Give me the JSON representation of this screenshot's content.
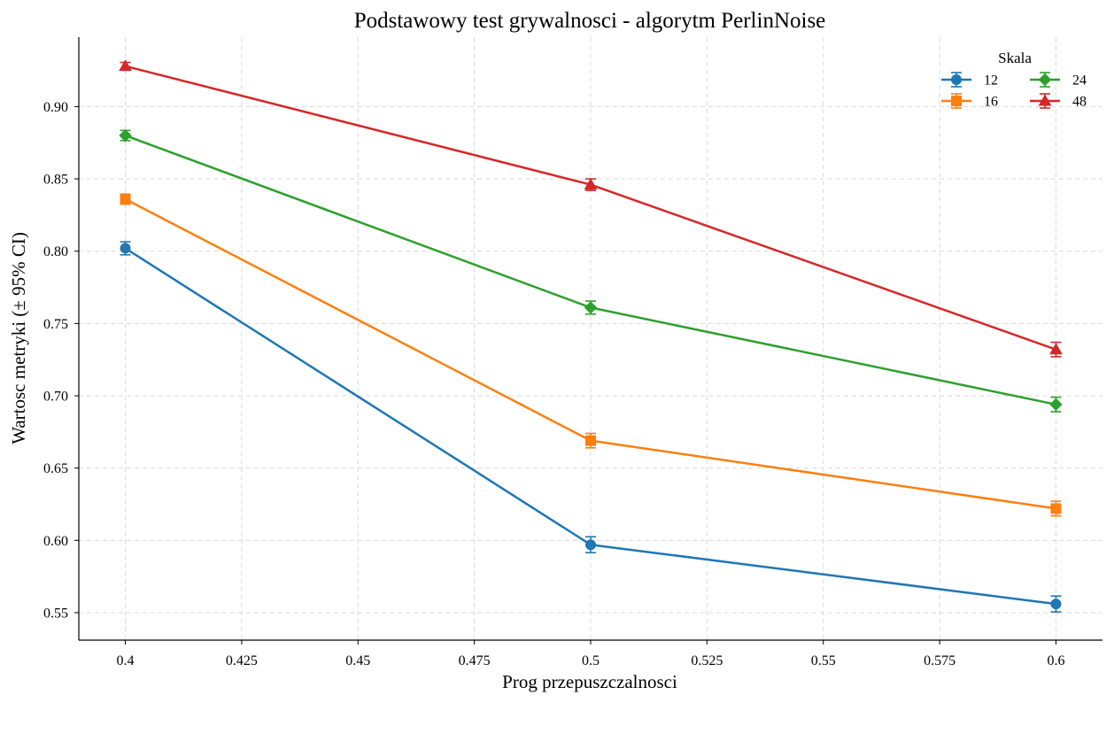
{
  "chart_data": {
    "type": "line",
    "title": "Podstawowy test grywalnosci - algorytm PerlinNoise",
    "xlabel": "Prog przepuszczalnosci",
    "ylabel": "Wartosc metryki (± 95% CI)",
    "x": [
      0.4,
      0.5,
      0.6
    ],
    "xlim": [
      0.39,
      0.61
    ],
    "ylim": [
      0.531,
      0.948
    ],
    "xticks": [
      "0.4",
      "0.425",
      "0.45",
      "0.475",
      "0.5",
      "0.525",
      "0.55",
      "0.575",
      "0.6"
    ],
    "yticks": [
      "0.55",
      "0.60",
      "0.65",
      "0.70",
      "0.75",
      "0.80",
      "0.85",
      "0.90"
    ],
    "grid": true,
    "legend": {
      "title": "Skala",
      "position": "top-right",
      "columns": 2
    },
    "series": [
      {
        "name": "12",
        "color": "#1f77b4",
        "marker": "circle",
        "values": [
          0.802,
          0.597,
          0.556
        ],
        "ci": [
          0.0045,
          0.0055,
          0.0055
        ]
      },
      {
        "name": "16",
        "color": "#ff7f0e",
        "marker": "square",
        "values": [
          0.836,
          0.669,
          0.622
        ],
        "ci": [
          0.0035,
          0.005,
          0.005
        ]
      },
      {
        "name": "24",
        "color": "#2ca02c",
        "marker": "diamond",
        "values": [
          0.88,
          0.761,
          0.694
        ],
        "ci": [
          0.0035,
          0.0045,
          0.005
        ]
      },
      {
        "name": "48",
        "color": "#d62728",
        "marker": "triangle",
        "values": [
          0.928,
          0.846,
          0.732
        ],
        "ci": [
          0.0025,
          0.004,
          0.005
        ]
      }
    ]
  }
}
